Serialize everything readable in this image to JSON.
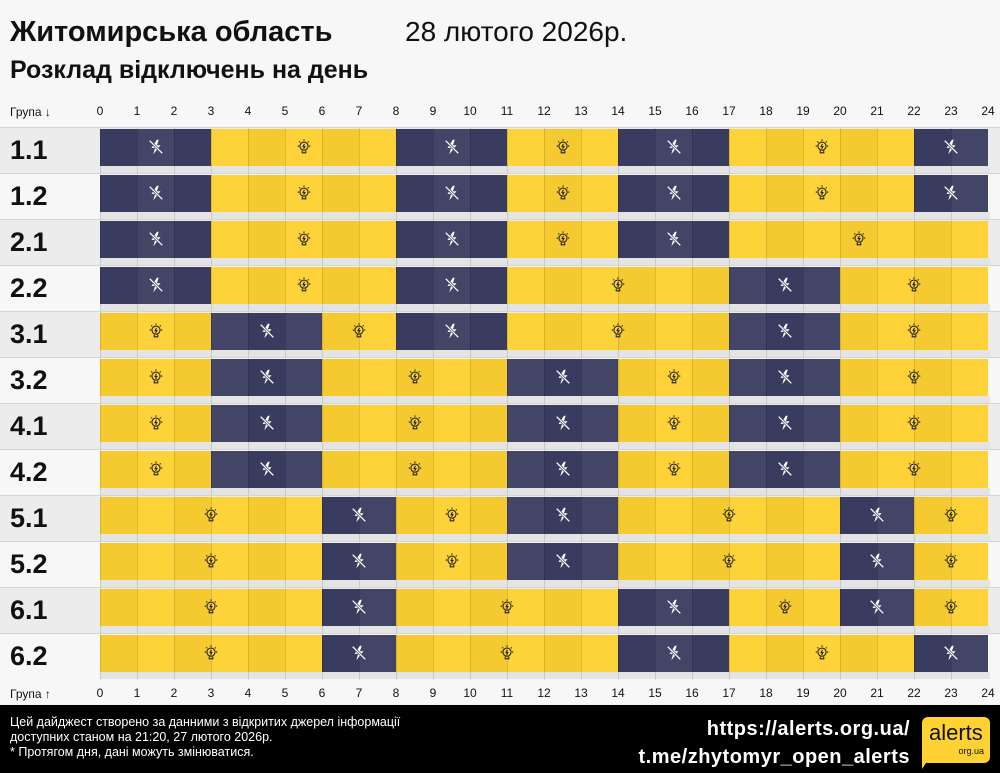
{
  "header": {
    "title": "Житомирська область",
    "date": "28 лютого 2026р.",
    "subtitle": "Розклад відключень на день"
  },
  "axis": {
    "top_label": "Група ↓",
    "bottom_label": "Група ↑",
    "hours": [
      "0",
      "1",
      "2",
      "3",
      "4",
      "5",
      "6",
      "7",
      "8",
      "9",
      "10",
      "11",
      "12",
      "13",
      "14",
      "15",
      "16",
      "17",
      "18",
      "19",
      "20",
      "21",
      "22",
      "23",
      "24"
    ]
  },
  "colors": {
    "on": "#fed233",
    "off": "#3d3f63"
  },
  "icons": {
    "on": "lightbulb-icon",
    "off": "no-power-icon"
  },
  "groups": [
    {
      "name": "1.1",
      "off": [
        [
          0,
          3
        ],
        [
          8,
          11
        ],
        [
          14,
          17
        ],
        [
          22,
          24
        ]
      ]
    },
    {
      "name": "1.2",
      "off": [
        [
          0,
          3
        ],
        [
          8,
          11
        ],
        [
          14,
          17
        ],
        [
          22,
          24
        ]
      ]
    },
    {
      "name": "2.1",
      "off": [
        [
          0,
          3
        ],
        [
          8,
          11
        ],
        [
          14,
          17
        ]
      ]
    },
    {
      "name": "2.2",
      "off": [
        [
          0,
          3
        ],
        [
          8,
          11
        ],
        [
          17,
          20
        ]
      ]
    },
    {
      "name": "3.1",
      "off": [
        [
          3,
          6
        ],
        [
          8,
          11
        ],
        [
          17,
          20
        ]
      ]
    },
    {
      "name": "3.2",
      "off": [
        [
          3,
          6
        ],
        [
          11,
          14
        ],
        [
          17,
          20
        ]
      ]
    },
    {
      "name": "4.1",
      "off": [
        [
          3,
          6
        ],
        [
          11,
          14
        ],
        [
          17,
          20
        ]
      ]
    },
    {
      "name": "4.2",
      "off": [
        [
          3,
          6
        ],
        [
          11,
          14
        ],
        [
          17,
          20
        ]
      ]
    },
    {
      "name": "5.1",
      "off": [
        [
          6,
          8
        ],
        [
          11,
          14
        ],
        [
          20,
          22
        ]
      ]
    },
    {
      "name": "5.2",
      "off": [
        [
          6,
          8
        ],
        [
          11,
          14
        ],
        [
          20,
          22
        ]
      ]
    },
    {
      "name": "6.1",
      "off": [
        [
          6,
          8
        ],
        [
          14,
          17
        ],
        [
          20,
          22
        ]
      ]
    },
    {
      "name": "6.2",
      "off": [
        [
          6,
          8
        ],
        [
          14,
          17
        ],
        [
          22,
          24
        ]
      ]
    }
  ],
  "footer": {
    "note_lines": [
      "Цей дайджест створено за данними з відкритих джерел інформації",
      "доступних станом на 21:20, 27 лютого 2026р.",
      "* Протягом дня, дані можуть змінюватися."
    ],
    "link1": "https://alerts.org.ua/",
    "link2": "t.me/zhytomyr_open_alerts",
    "logo_text": "alerts",
    "logo_sub": "org.ua"
  }
}
